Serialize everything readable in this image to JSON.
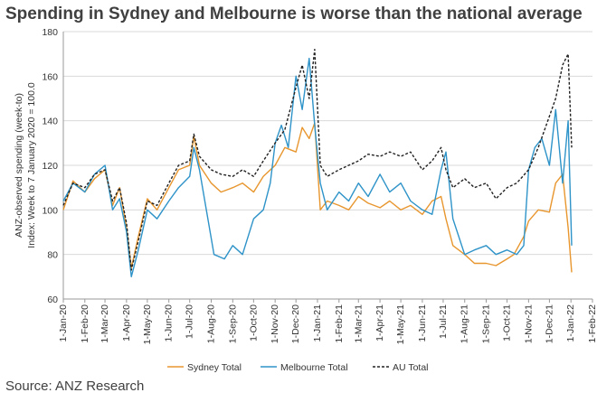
{
  "title": "Spending in Sydney and Melbourne is worse than the national average",
  "source": "Source: ANZ Research",
  "chart_data": {
    "type": "line",
    "ylabel_line1": "ANZ-observed spending (week-to)",
    "ylabel_line2": "Index: Week to 7 January 2020 = 100.0",
    "ylim": [
      60,
      180
    ],
    "yticks": [
      60,
      80,
      100,
      120,
      140,
      160,
      180
    ],
    "xticks": [
      "1-Jan-20",
      "1-Feb-20",
      "1-Mar-20",
      "1-Apr-20",
      "1-May-20",
      "1-Jun-20",
      "1-Jul-20",
      "1-Aug-20",
      "1-Sep-20",
      "1-Oct-20",
      "1-Nov-20",
      "1-Dec-20",
      "1-Jan-21",
      "1-Feb-21",
      "1-Mar-21",
      "1-Apr-21",
      "1-May-21",
      "1-Jun-21",
      "1-Jul-21",
      "1-Aug-21",
      "1-Sep-21",
      "1-Oct-21",
      "1-Nov-21",
      "1-Dec-21",
      "1-Jan-22",
      "1-Feb-22"
    ],
    "grid": "horizontal",
    "legend": "bottom",
    "series": [
      {
        "name": "Sydney Total",
        "color": "#E8962E",
        "dash": "",
        "x": [
          "2020-01-01",
          "2020-01-15",
          "2020-02-01",
          "2020-02-15",
          "2020-03-01",
          "2020-03-12",
          "2020-03-22",
          "2020-04-01",
          "2020-04-08",
          "2020-04-18",
          "2020-05-01",
          "2020-05-15",
          "2020-06-01",
          "2020-06-15",
          "2020-07-01",
          "2020-07-07",
          "2020-07-15",
          "2020-08-01",
          "2020-08-15",
          "2020-09-01",
          "2020-09-15",
          "2020-10-01",
          "2020-10-15",
          "2020-11-01",
          "2020-11-15",
          "2020-12-01",
          "2020-12-10",
          "2020-12-20",
          "2020-12-28",
          "2021-01-05",
          "2021-01-15",
          "2021-02-01",
          "2021-02-15",
          "2021-03-01",
          "2021-03-15",
          "2021-04-01",
          "2021-04-15",
          "2021-05-01",
          "2021-05-15",
          "2021-06-01",
          "2021-06-15",
          "2021-06-28",
          "2021-07-05",
          "2021-07-15",
          "2021-08-01",
          "2021-08-15",
          "2021-09-01",
          "2021-09-15",
          "2021-10-01",
          "2021-10-11",
          "2021-10-25",
          "2021-11-01",
          "2021-11-15",
          "2021-12-01",
          "2021-12-10",
          "2021-12-20",
          "2021-12-28",
          "2022-01-02"
        ],
        "values": [
          100,
          113,
          108,
          114,
          118,
          102,
          110,
          92,
          74,
          88,
          105,
          100,
          110,
          118,
          120,
          133,
          120,
          112,
          108,
          110,
          112,
          108,
          115,
          120,
          128,
          126,
          137,
          132,
          139,
          100,
          104,
          102,
          100,
          106,
          103,
          101,
          104,
          100,
          102,
          98,
          104,
          106,
          96,
          84,
          80,
          76,
          76,
          75,
          78,
          80,
          88,
          95,
          100,
          99,
          112,
          116,
          92,
          72
        ]
      },
      {
        "name": "Melbourne Total",
        "color": "#2E93C8",
        "dash": "",
        "x": [
          "2020-01-01",
          "2020-01-15",
          "2020-02-01",
          "2020-02-15",
          "2020-03-01",
          "2020-03-12",
          "2020-03-22",
          "2020-04-01",
          "2020-04-08",
          "2020-04-18",
          "2020-05-01",
          "2020-05-15",
          "2020-06-01",
          "2020-06-15",
          "2020-07-01",
          "2020-07-07",
          "2020-07-15",
          "2020-07-25",
          "2020-08-05",
          "2020-08-20",
          "2020-09-01",
          "2020-09-15",
          "2020-10-01",
          "2020-10-15",
          "2020-10-25",
          "2020-11-01",
          "2020-11-10",
          "2020-11-20",
          "2020-12-01",
          "2020-12-10",
          "2020-12-20",
          "2020-12-28",
          "2021-01-05",
          "2021-01-15",
          "2021-02-01",
          "2021-02-15",
          "2021-03-01",
          "2021-03-15",
          "2021-04-01",
          "2021-04-15",
          "2021-05-01",
          "2021-05-15",
          "2021-06-01",
          "2021-06-15",
          "2021-06-28",
          "2021-07-05",
          "2021-07-15",
          "2021-08-01",
          "2021-08-15",
          "2021-09-01",
          "2021-09-15",
          "2021-10-01",
          "2021-10-15",
          "2021-10-25",
          "2021-11-01",
          "2021-11-10",
          "2021-11-20",
          "2021-12-01",
          "2021-12-10",
          "2021-12-20",
          "2021-12-28",
          "2022-01-02"
        ],
        "values": [
          104,
          112,
          108,
          116,
          120,
          100,
          105,
          90,
          70,
          82,
          100,
          96,
          104,
          110,
          115,
          128,
          118,
          100,
          80,
          78,
          84,
          80,
          96,
          100,
          112,
          130,
          138,
          128,
          160,
          145,
          168,
          138,
          112,
          100,
          108,
          104,
          112,
          106,
          116,
          108,
          112,
          104,
          100,
          98,
          118,
          126,
          96,
          80,
          82,
          84,
          80,
          82,
          80,
          84,
          118,
          128,
          132,
          120,
          145,
          112,
          140,
          84
        ]
      },
      {
        "name": "AU Total",
        "color": "#222222",
        "dash": "3,2",
        "x": [
          "2020-01-01",
          "2020-01-15",
          "2020-02-01",
          "2020-02-15",
          "2020-03-01",
          "2020-03-12",
          "2020-03-22",
          "2020-04-01",
          "2020-04-08",
          "2020-04-18",
          "2020-05-01",
          "2020-05-15",
          "2020-06-01",
          "2020-06-15",
          "2020-07-01",
          "2020-07-07",
          "2020-07-15",
          "2020-08-01",
          "2020-08-15",
          "2020-09-01",
          "2020-09-15",
          "2020-10-01",
          "2020-10-15",
          "2020-11-01",
          "2020-11-15",
          "2020-12-01",
          "2020-12-10",
          "2020-12-20",
          "2020-12-28",
          "2021-01-05",
          "2021-01-15",
          "2021-02-01",
          "2021-02-15",
          "2021-03-01",
          "2021-03-15",
          "2021-04-01",
          "2021-04-15",
          "2021-05-01",
          "2021-05-15",
          "2021-06-01",
          "2021-06-15",
          "2021-06-28",
          "2021-07-05",
          "2021-07-15",
          "2021-08-01",
          "2021-08-15",
          "2021-09-01",
          "2021-09-15",
          "2021-10-01",
          "2021-10-15",
          "2021-11-01",
          "2021-11-15",
          "2021-12-01",
          "2021-12-10",
          "2021-12-20",
          "2021-12-28",
          "2022-01-02"
        ],
        "values": [
          102,
          112,
          110,
          116,
          118,
          104,
          110,
          94,
          73,
          86,
          104,
          102,
          112,
          120,
          122,
          134,
          124,
          118,
          116,
          115,
          118,
          115,
          122,
          130,
          136,
          155,
          165,
          150,
          172,
          120,
          115,
          118,
          120,
          122,
          125,
          124,
          126,
          124,
          126,
          118,
          122,
          128,
          118,
          110,
          114,
          110,
          112,
          105,
          110,
          112,
          118,
          128,
          142,
          150,
          165,
          170,
          128
        ]
      }
    ]
  }
}
